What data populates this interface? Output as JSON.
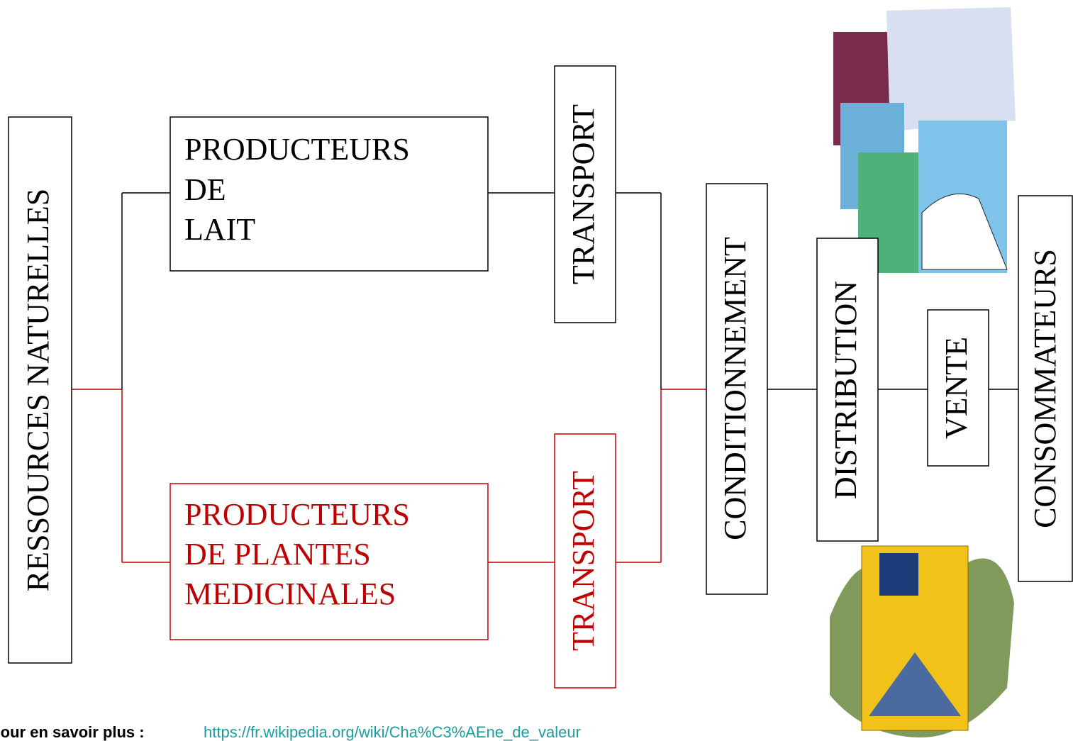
{
  "nodes": [
    {
      "label": "RESSOURCES NATURELLES"
    },
    {
      "lines": [
        "PRODUCTEURS",
        "DE",
        "LAIT"
      ]
    },
    {
      "label": "TRANSPORT"
    },
    {
      "lines": [
        "PRODUCTEURS",
        "DE PLANTES",
        "MEDICINALES"
      ]
    },
    {
      "label": "TRANSPORT"
    },
    {
      "label": "CONDITIONNEMENT"
    },
    {
      "label": "DISTRIBUTION"
    },
    {
      "label": "VENTE"
    },
    {
      "label": "CONSOMMATEURS"
    }
  ],
  "footer": {
    "label": "Pour en savoir plus :",
    "link": "https://fr.wikipedia.org/wiki/Cha%C3%AEne_de_valeur"
  }
}
